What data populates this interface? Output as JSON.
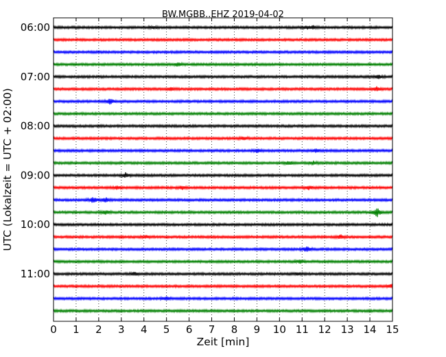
{
  "chart_data": {
    "type": "line",
    "title": "BW.MGBB..EHZ 2019-04-02",
    "xlabel": "Zeit  [min]",
    "ylabel": "UTC (Lokalzeit = UTC + 02:00)",
    "xlim": [
      0,
      15
    ],
    "xticks": [
      "0",
      "1",
      "2",
      "3",
      "4",
      "5",
      "6",
      "7",
      "8",
      "9",
      "10",
      "11",
      "12",
      "13",
      "14",
      "15"
    ],
    "yticks": [
      {
        "label": "06:00",
        "trace": 0
      },
      {
        "label": "07:00",
        "trace": 4
      },
      {
        "label": "08:00",
        "trace": 8
      },
      {
        "label": "09:00",
        "trace": 12
      },
      {
        "label": "10:00",
        "trace": 16
      },
      {
        "label": "11:00",
        "trace": 20
      }
    ],
    "vertical_grid": "dotted",
    "trace_colors": [
      "#000000",
      "#ff0000",
      "#0000ff",
      "#008000"
    ],
    "traces": [
      {
        "start": "06:00",
        "events": [
          {
            "x": 4.4,
            "amp": 1.3
          },
          {
            "x": 11.2,
            "amp": 1.5
          },
          {
            "x": 11.5,
            "amp": 1.3
          }
        ]
      },
      {
        "start": "06:15",
        "events": []
      },
      {
        "start": "06:30",
        "events": []
      },
      {
        "start": "06:45",
        "events": [
          {
            "x": 5.5,
            "amp": 1.6
          }
        ]
      },
      {
        "start": "07:00",
        "events": [
          {
            "x": 14.4,
            "amp": 2.0
          }
        ]
      },
      {
        "start": "07:15",
        "events": [
          {
            "x": 5.2,
            "amp": 1.6
          },
          {
            "x": 14.3,
            "amp": 1.8
          }
        ]
      },
      {
        "start": "07:30",
        "events": [
          {
            "x": 2.5,
            "amp": 3.0
          }
        ]
      },
      {
        "start": "07:45",
        "events": []
      },
      {
        "start": "08:00",
        "events": []
      },
      {
        "start": "08:15",
        "events": [
          {
            "x": 8.4,
            "amp": 1.6
          }
        ]
      },
      {
        "start": "08:30",
        "events": [
          {
            "x": 9.0,
            "amp": 1.6
          },
          {
            "x": 11.6,
            "amp": 1.6
          }
        ]
      },
      {
        "start": "08:45",
        "events": [
          {
            "x": 10.4,
            "amp": 1.8
          },
          {
            "x": 11.5,
            "amp": 1.6
          }
        ]
      },
      {
        "start": "09:00",
        "events": [
          {
            "x": 3.2,
            "amp": 2.5
          }
        ]
      },
      {
        "start": "09:15",
        "events": [
          {
            "x": 2.8,
            "amp": 1.6
          },
          {
            "x": 5.7,
            "amp": 1.6
          },
          {
            "x": 11.3,
            "amp": 1.6
          }
        ]
      },
      {
        "start": "09:30",
        "events": [
          {
            "x": 1.75,
            "amp": 3.0
          },
          {
            "x": 2.3,
            "amp": 2.6
          }
        ]
      },
      {
        "start": "09:45",
        "events": [
          {
            "x": 2.3,
            "amp": 2.2
          },
          {
            "x": 14.3,
            "amp": 5.0
          }
        ]
      },
      {
        "start": "10:00",
        "events": []
      },
      {
        "start": "10:15",
        "events": [
          {
            "x": 4.1,
            "amp": 1.4
          },
          {
            "x": 12.7,
            "amp": 1.8
          }
        ]
      },
      {
        "start": "10:30",
        "events": [
          {
            "x": 11.2,
            "amp": 3.0
          }
        ]
      },
      {
        "start": "10:45",
        "events": [
          {
            "x": 10.9,
            "amp": 1.8
          }
        ]
      },
      {
        "start": "11:00",
        "events": [
          {
            "x": 3.6,
            "amp": 1.8
          },
          {
            "x": 10.8,
            "amp": 1.3
          }
        ]
      },
      {
        "start": "11:15",
        "events": [
          {
            "x": 15.0,
            "amp": 2.2
          }
        ]
      },
      {
        "start": "11:30",
        "events": [
          {
            "x": 5.0,
            "amp": 1.8
          }
        ]
      },
      {
        "start": "11:45",
        "events": []
      }
    ]
  }
}
